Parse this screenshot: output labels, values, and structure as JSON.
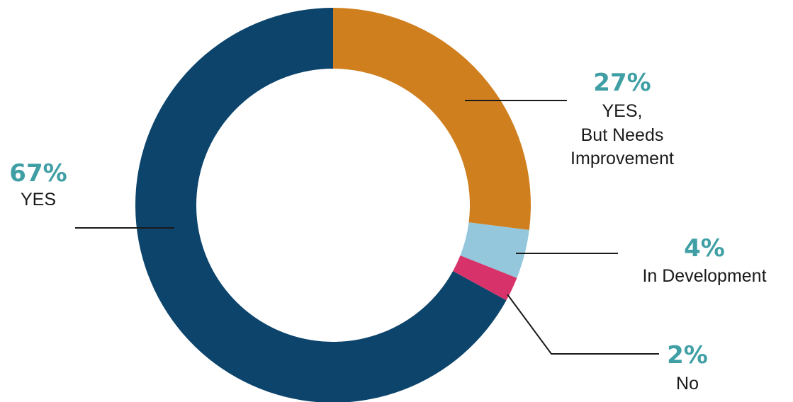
{
  "chart_data": {
    "type": "pie",
    "subtype": "donut",
    "start_angle": "12 o'clock",
    "direction": "clockwise",
    "label_color": "#3f9fa4",
    "leader_color": "#1a1a1a",
    "slices": [
      {
        "key": "yes_needs",
        "value": 27,
        "value_label": "27%",
        "label_lines": [
          "YES,",
          "But Needs",
          "Improvement"
        ],
        "color": "#d07f1e"
      },
      {
        "key": "in_dev",
        "value": 4,
        "value_label": "4%",
        "label_lines": [
          "In Development"
        ],
        "color": "#94c7dc"
      },
      {
        "key": "no",
        "value": 2,
        "value_label": "2%",
        "label_lines": [
          "No"
        ],
        "color": "#d7336a"
      },
      {
        "key": "yes",
        "value": 67,
        "value_label": "67%",
        "label_lines": [
          "YES"
        ],
        "color": "#0c446c"
      }
    ]
  }
}
